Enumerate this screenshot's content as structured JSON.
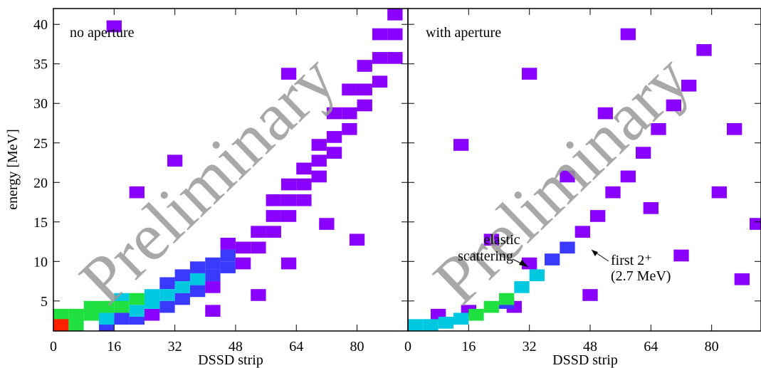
{
  "chart_data": [
    {
      "type": "heatmap",
      "annotation": "no aperture",
      "watermark": "Preliminary",
      "xlabel": "DSSD strip",
      "ylabel": "energy [MeV]",
      "xlim": [
        0,
        93.4
      ],
      "ylim": [
        1.2,
        42
      ],
      "xticks": [
        0,
        16,
        32,
        48,
        64,
        80
      ],
      "yticks": [
        5,
        10,
        15,
        20,
        25,
        30,
        35,
        40
      ],
      "colormap": [
        "#8a00ff",
        "#3a3aff",
        "#00c8e0",
        "#20e040",
        "#f0f000",
        "#ff2000"
      ],
      "cells": [
        [
          0,
          1.2,
          6
        ],
        [
          4,
          1.2,
          4
        ],
        [
          0,
          2.5,
          4
        ],
        [
          4,
          2.5,
          4
        ],
        [
          8,
          2.5,
          4
        ],
        [
          8,
          3.5,
          4
        ],
        [
          12,
          3.5,
          4
        ],
        [
          12,
          2,
          3
        ],
        [
          16,
          3.5,
          4
        ],
        [
          16,
          4.5,
          3
        ],
        [
          20,
          4.5,
          4
        ],
        [
          20,
          3,
          3
        ],
        [
          24,
          5,
          3
        ],
        [
          24,
          4,
          3
        ],
        [
          28,
          5,
          3
        ],
        [
          28,
          6.5,
          2
        ],
        [
          32,
          6,
          3
        ],
        [
          32,
          7.5,
          2
        ],
        [
          36,
          7,
          3
        ],
        [
          36,
          8.5,
          2
        ],
        [
          40,
          9,
          2
        ],
        [
          40,
          7.5,
          2
        ],
        [
          44,
          10,
          2
        ],
        [
          44,
          8.5,
          2
        ],
        [
          32,
          4.5,
          2
        ],
        [
          36,
          5.5,
          2
        ],
        [
          40,
          6,
          1
        ],
        [
          28,
          3.5,
          2
        ],
        [
          24,
          2.5,
          1
        ],
        [
          16,
          2,
          2
        ],
        [
          12,
          1.2,
          2
        ],
        [
          20,
          2,
          2
        ],
        [
          44,
          11.5,
          1
        ],
        [
          48,
          11,
          1
        ],
        [
          48,
          9,
          1
        ],
        [
          52,
          13,
          1
        ],
        [
          52,
          11,
          1
        ],
        [
          56,
          15,
          1
        ],
        [
          56,
          13,
          1
        ],
        [
          60,
          17,
          1
        ],
        [
          60,
          15,
          1
        ],
        [
          64,
          19,
          1
        ],
        [
          64,
          21,
          1
        ],
        [
          68,
          22,
          1
        ],
        [
          68,
          24,
          1
        ],
        [
          72,
          25,
          1
        ],
        [
          72,
          28,
          1
        ],
        [
          76,
          28,
          1
        ],
        [
          76,
          31,
          1
        ],
        [
          80,
          31,
          1
        ],
        [
          80,
          34,
          1
        ],
        [
          84,
          35,
          1
        ],
        [
          84,
          38,
          1
        ],
        [
          88,
          38,
          1
        ],
        [
          88,
          40.5,
          1
        ],
        [
          60,
          19,
          1
        ],
        [
          56,
          17,
          1
        ],
        [
          64,
          17,
          1
        ],
        [
          68,
          20,
          1
        ],
        [
          72,
          23,
          1
        ],
        [
          76,
          26,
          1
        ],
        [
          80,
          29,
          1
        ],
        [
          84,
          32,
          1
        ],
        [
          88,
          35,
          1
        ],
        [
          52,
          5,
          1
        ],
        [
          60,
          9,
          1
        ],
        [
          70,
          14,
          1
        ],
        [
          40,
          3,
          1
        ],
        [
          20,
          18,
          1
        ],
        [
          30,
          22,
          1
        ],
        [
          78,
          12,
          1
        ],
        [
          14,
          39,
          1
        ],
        [
          60,
          33,
          1
        ]
      ]
    },
    {
      "type": "heatmap",
      "annotation": "with aperture",
      "watermark": "Preliminary",
      "xlabel": "DSSD strip",
      "xlim": [
        0,
        93
      ],
      "ylim": [
        1.2,
        42
      ],
      "xticks": [
        0,
        16,
        32,
        48,
        64,
        80
      ],
      "colormap": [
        "#8a00ff",
        "#3a3aff",
        "#00c8e0",
        "#20e040",
        "#f0f000",
        "#ff2000"
      ],
      "labels": [
        "elastic",
        "scattering",
        "first 2⁺",
        "(2.7 MeV)"
      ],
      "cells": [
        [
          0,
          1.2,
          3
        ],
        [
          4,
          1.2,
          3
        ],
        [
          8,
          1.5,
          3
        ],
        [
          12,
          2,
          3
        ],
        [
          16,
          2.5,
          4
        ],
        [
          20,
          3.5,
          4
        ],
        [
          24,
          4.5,
          4
        ],
        [
          28,
          6,
          3
        ],
        [
          32,
          7.5,
          3
        ],
        [
          36,
          9.5,
          2
        ],
        [
          40,
          11,
          2
        ],
        [
          44,
          13,
          1
        ],
        [
          48,
          15,
          1
        ],
        [
          52,
          18,
          1
        ],
        [
          56,
          20,
          1
        ],
        [
          60,
          23,
          1
        ],
        [
          64,
          26,
          1
        ],
        [
          68,
          29,
          1
        ],
        [
          72,
          31.5,
          1
        ],
        [
          24,
          4,
          2
        ],
        [
          26,
          3.5,
          1
        ],
        [
          14,
          3,
          1
        ],
        [
          6,
          2.5,
          1
        ],
        [
          30,
          9,
          1
        ],
        [
          40,
          20,
          1
        ],
        [
          50,
          28,
          1
        ],
        [
          62,
          16,
          1
        ],
        [
          70,
          10,
          1
        ],
        [
          80,
          18,
          1
        ],
        [
          84,
          26,
          1
        ],
        [
          86,
          7,
          1
        ],
        [
          56,
          38,
          1
        ],
        [
          30,
          33,
          1
        ],
        [
          12,
          24,
          1
        ],
        [
          46,
          5,
          1
        ],
        [
          76,
          36,
          1
        ],
        [
          90,
          14,
          1
        ],
        [
          20,
          12,
          1
        ]
      ]
    }
  ]
}
